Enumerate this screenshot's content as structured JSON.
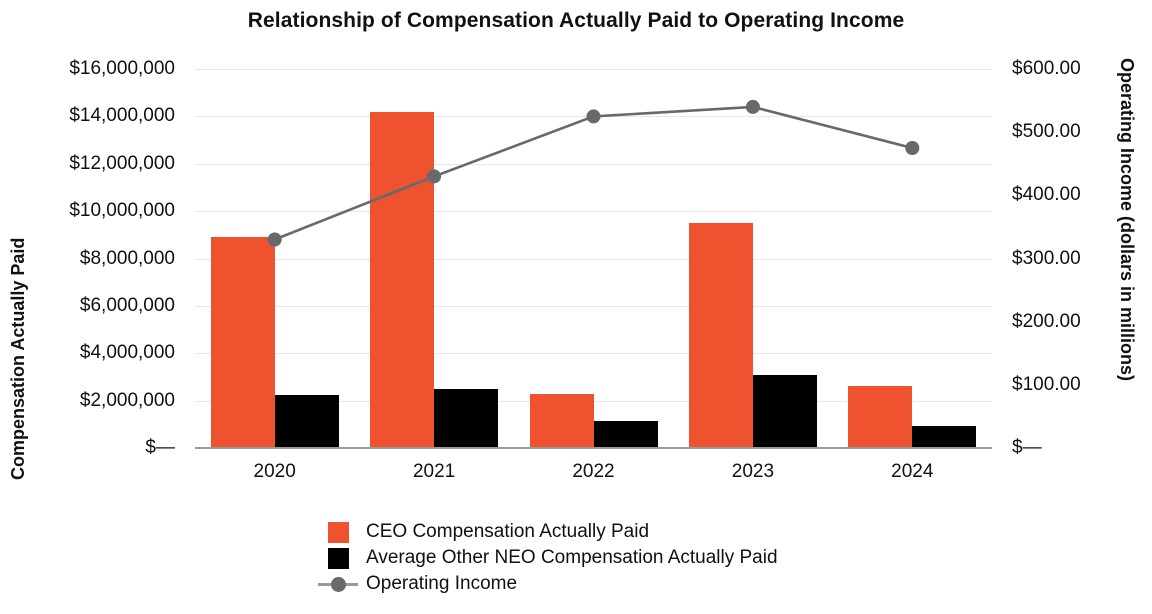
{
  "chart_data": {
    "type": "bar-line-combo",
    "title": "Relationship of Compensation Actually Paid to Operating Income",
    "categories": [
      "2020",
      "2021",
      "2022",
      "2023",
      "2024"
    ],
    "series": [
      {
        "name": "CEO Compensation Actually Paid",
        "type": "bar",
        "axis": "left",
        "color": "#ee522e",
        "values": [
          8900000,
          14200000,
          2300000,
          9500000,
          2600000
        ]
      },
      {
        "name": "Average Other NEO Compensation Actually Paid",
        "type": "bar",
        "axis": "left",
        "color": "#000000",
        "values": [
          2250000,
          2500000,
          1150000,
          3100000,
          950000
        ]
      },
      {
        "name": "Operating Income",
        "type": "line",
        "axis": "right",
        "color": "#67696c",
        "values": [
          330,
          430,
          525,
          540,
          475
        ]
      }
    ],
    "left_axis": {
      "label": "Compensation Actually Paid",
      "min": 0,
      "max": 16000000,
      "tick_step": 2000000,
      "ticks": [
        "$16,000,000",
        "$14,000,000",
        "$12,000,000",
        "$10,000,000",
        "$8,000,000",
        "$6,000,000",
        "$4,000,000",
        "$2,000,000",
        "$—"
      ]
    },
    "right_axis": {
      "label": "Operating Income (dollars in millions)",
      "min": 0,
      "max": 600,
      "tick_step": 100,
      "ticks": [
        "$600.00",
        "$500.00",
        "$400.00",
        "$300.00",
        "$200.00",
        "$100.00",
        "$—"
      ]
    },
    "layout": {
      "grid": "horizontal",
      "legend_position": "bottom-left-of-center",
      "gridline_color": "#e8e8e8",
      "baseline_color": "#9a9a9a"
    }
  }
}
